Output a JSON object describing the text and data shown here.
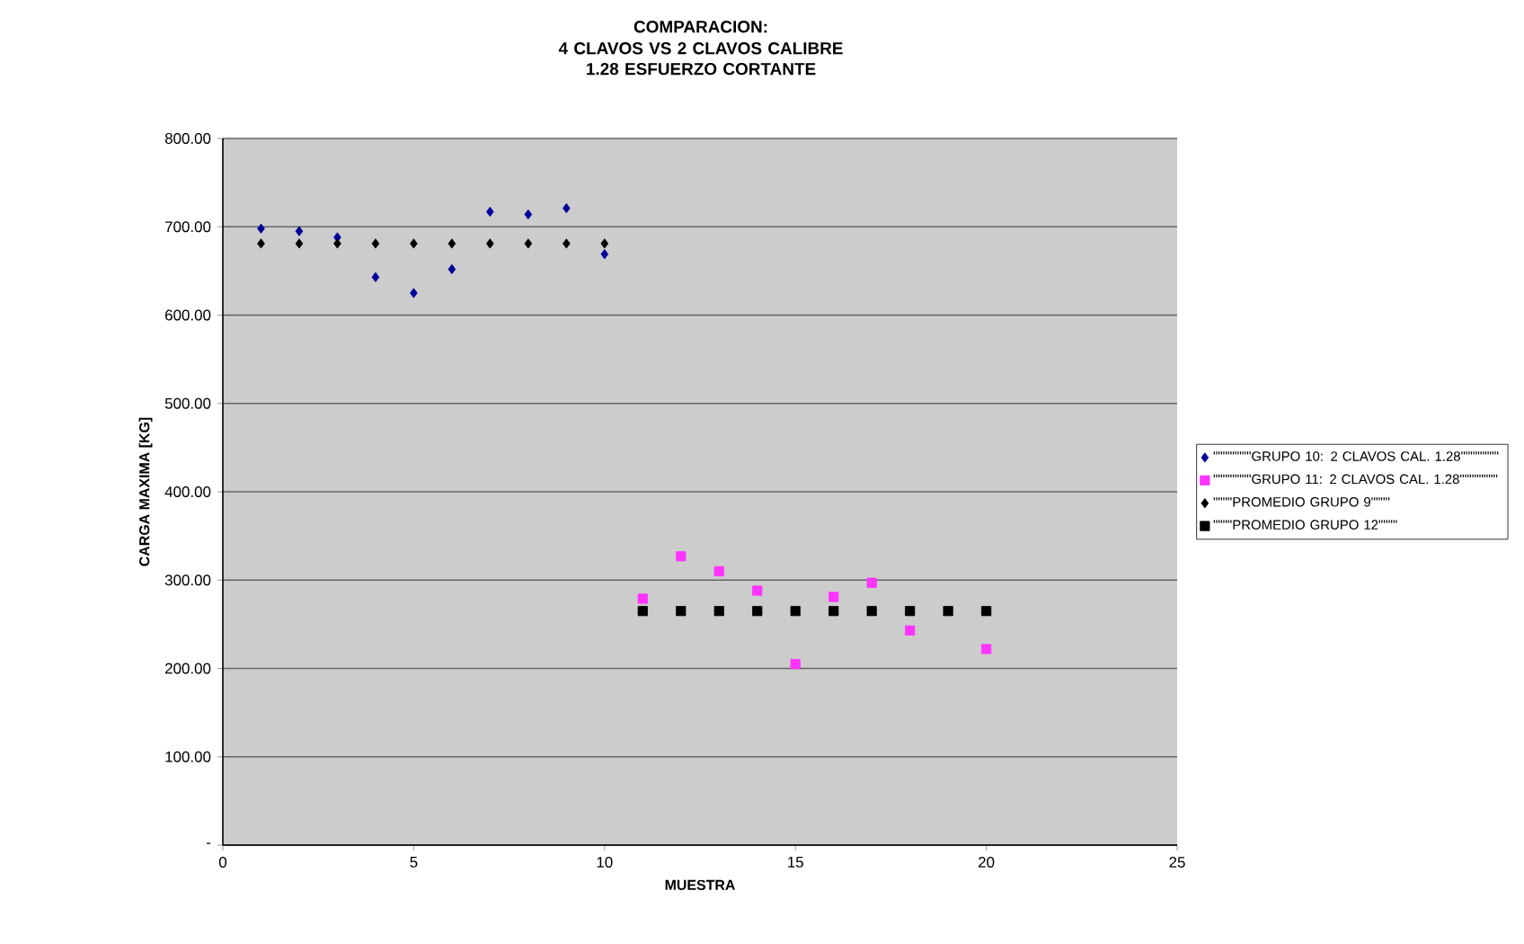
{
  "chart_data": {
    "type": "scatter",
    "title": "COMPARACION:",
    "subtitle": "4 CLAVOS VS 2 CLAVOS CALIBRE 1.28 ESFUERZO CORTANTE",
    "xlabel": "MUESTRA",
    "ylabel": "CARGA MAXIMA [KG]",
    "xlim": [
      0,
      25
    ],
    "xticks": [
      0,
      5,
      10,
      15,
      20,
      25
    ],
    "ylim": [
      0,
      800
    ],
    "yticks": [
      {
        "value": 0,
        "label": "-"
      },
      {
        "value": 100,
        "label": "100.00"
      },
      {
        "value": 200,
        "label": "200.00"
      },
      {
        "value": 300,
        "label": "300.00"
      },
      {
        "value": 400,
        "label": "400.00"
      },
      {
        "value": 500,
        "label": "500.00"
      },
      {
        "value": 600,
        "label": "600.00"
      },
      {
        "value": 700,
        "label": "700.00"
      },
      {
        "value": 800,
        "label": "800.00"
      }
    ],
    "grid": "y",
    "legend": "right",
    "series": [
      {
        "name": "\"\"\"\"\"\"\"\"GRUPO 10:  2 CLAVOS CAL. 1.28\"\"\"\"\"\"\"\"",
        "color": "#000099",
        "marker": "diamond",
        "x": [
          1,
          2,
          3,
          4,
          5,
          6,
          7,
          8,
          9,
          10
        ],
        "values": [
          698,
          695,
          688,
          643,
          625,
          652,
          717,
          714,
          721,
          669
        ]
      },
      {
        "name": "\"\"\"\"\"\"\"\"GRUPO 11: 2 CLAVOS CAL. 1.28\"\"\"\"\"\"\"\"",
        "color": "#ff33ff",
        "marker": "square",
        "x": [
          11,
          12,
          13,
          14,
          15,
          16,
          17,
          18,
          19,
          20
        ],
        "values": [
          279,
          327,
          310,
          288,
          205,
          281,
          297,
          243,
          null,
          222
        ]
      },
      {
        "name": "\"\"\"\"PROMEDIO GRUPO 9\"\"\"\"",
        "color": "#000000",
        "marker": "diamond",
        "x": [
          1,
          2,
          3,
          4,
          5,
          6,
          7,
          8,
          9,
          10
        ],
        "values": [
          681,
          681,
          681,
          681,
          681,
          681,
          681,
          681,
          681,
          681
        ]
      },
      {
        "name": "\"\"\"\"PROMEDIO GRUPO 12\"\"\"\"",
        "color": "#000000",
        "marker": "square",
        "x": [
          11,
          12,
          13,
          14,
          15,
          16,
          17,
          18,
          19,
          20
        ],
        "values": [
          265,
          265,
          265,
          265,
          265,
          265,
          265,
          265,
          265,
          265
        ]
      }
    ]
  }
}
